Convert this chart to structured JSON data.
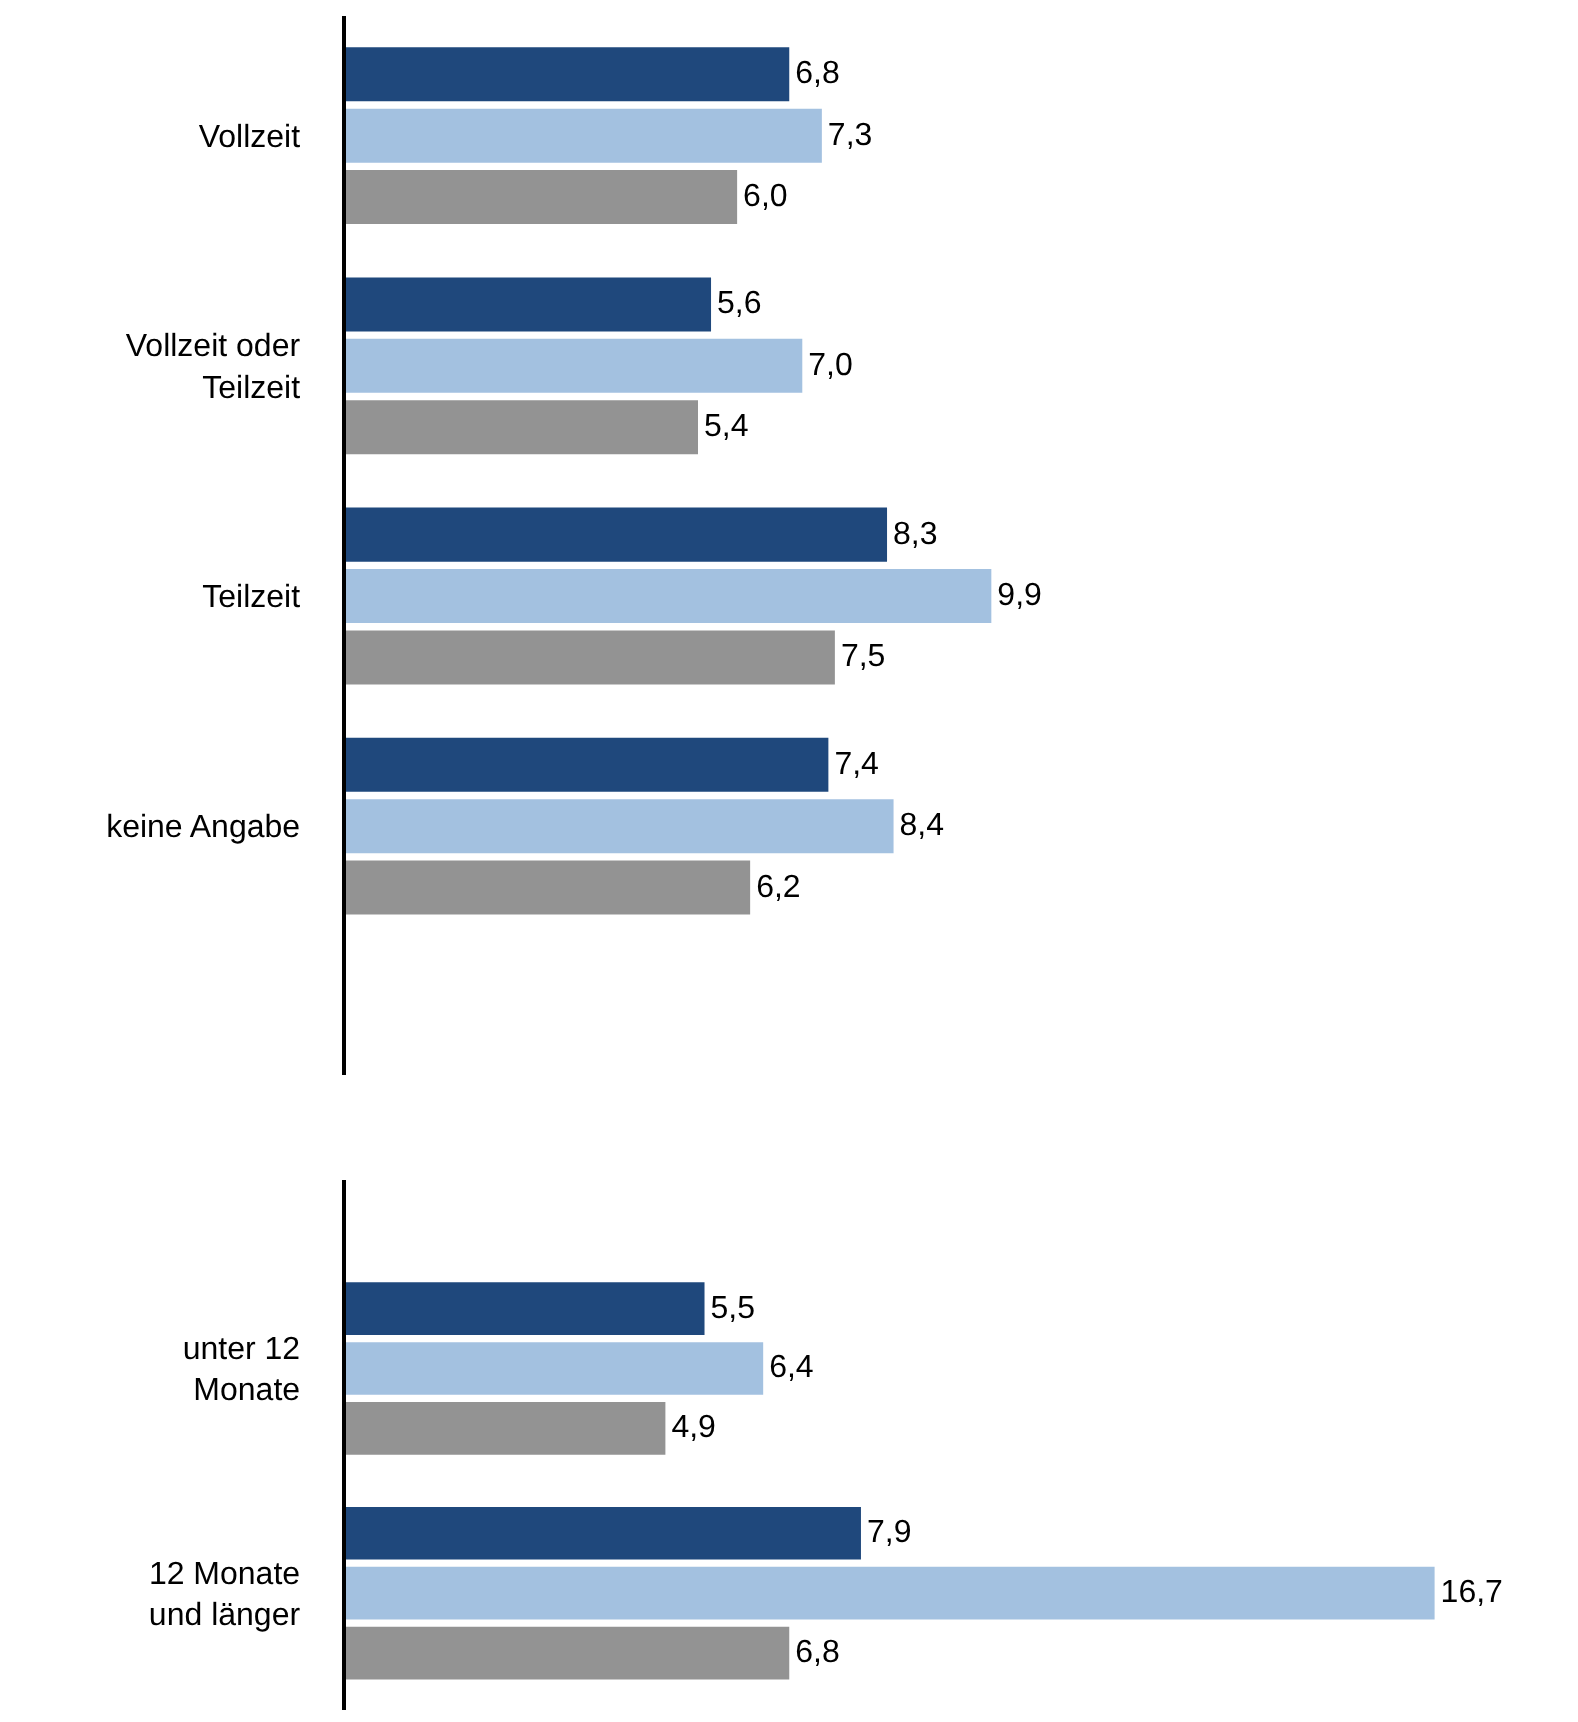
{
  "chart_data": [
    {
      "type": "bar",
      "orientation": "horizontal",
      "categories": [
        "Vollzeit",
        "Vollzeit oder\nTeilzeit",
        "Teilzeit",
        "keine Angabe"
      ],
      "xlim": [
        0,
        18.9
      ],
      "tick_labels": "y",
      "series": [
        {
          "color": "#1f487c",
          "values": [
            6.8,
            5.6,
            8.3,
            7.4
          ],
          "value_labels": [
            "6,8",
            "5,6",
            "8,3",
            "7,4"
          ]
        },
        {
          "color": "#a3c1e0",
          "values": [
            7.3,
            7.0,
            9.9,
            8.4
          ],
          "value_labels": [
            "7,3",
            "7,0",
            "9,9",
            "8,4"
          ]
        },
        {
          "color": "#939393",
          "values": [
            6.0,
            5.4,
            7.5,
            6.2
          ],
          "value_labels": [
            "6,0",
            "5,4",
            "7,5",
            "6,2"
          ]
        }
      ]
    },
    {
      "type": "bar",
      "orientation": "horizontal",
      "categories": [
        "unter 12\nMonate",
        "12 Monate\nund länger"
      ],
      "xlim": [
        0,
        18.9
      ],
      "tick_labels": "y",
      "series": [
        {
          "color": "#1f487c",
          "values": [
            5.5,
            7.9
          ],
          "value_labels": [
            "5,5",
            "7,9"
          ]
        },
        {
          "color": "#a3c1e0",
          "values": [
            6.4,
            16.7
          ],
          "value_labels": [
            "6,4",
            "16,7"
          ]
        },
        {
          "color": "#939393",
          "values": [
            4.9,
            6.8
          ],
          "value_labels": [
            "4,9",
            "6,8"
          ]
        }
      ]
    }
  ]
}
